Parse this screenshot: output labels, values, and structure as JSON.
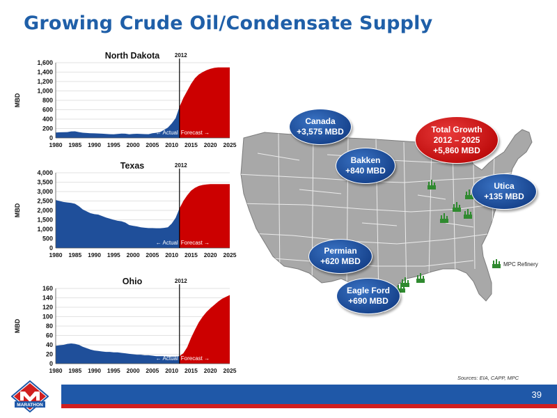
{
  "slide": {
    "title": "Growing Crude Oil/Condensate Supply",
    "page_number": "39",
    "sources": "Sources: EIA, CAPP, MPC",
    "logo_text": "MARATHON",
    "legend_refinery": "MPC Refinery"
  },
  "colors": {
    "actual": "#1f4f9a",
    "forecast": "#cc0000",
    "title": "#1f5fa8"
  },
  "bubbles": {
    "canada": {
      "l1": "Canada",
      "l2": "+3,575 MBD"
    },
    "bakken": {
      "l1": "Bakken",
      "l2": "+840 MBD"
    },
    "total": {
      "l1": "Total Growth",
      "l2": "2012 – 2025",
      "l3": "+5,860 MBD"
    },
    "utica": {
      "l1": "Utica",
      "l2": "+135 MBD"
    },
    "permian": {
      "l1": "Permian",
      "l2": "+620 MBD"
    },
    "eagle": {
      "l1": "Eagle Ford",
      "l2": "+690 MBD"
    }
  },
  "chart_data": [
    {
      "type": "area",
      "title": "North Dakota",
      "ylabel": "MBD",
      "split_label": "2012",
      "actual_label": "← Actual",
      "forecast_label": "Forecast →",
      "x": [
        1980,
        1981,
        1982,
        1983,
        1984,
        1985,
        1986,
        1987,
        1988,
        1989,
        1990,
        1991,
        1992,
        1993,
        1994,
        1995,
        1996,
        1997,
        1998,
        1999,
        2000,
        2001,
        2002,
        2003,
        2004,
        2005,
        2006,
        2007,
        2008,
        2009,
        2010,
        2011,
        2012,
        2013,
        2014,
        2015,
        2016,
        2017,
        2018,
        2019,
        2020,
        2021,
        2022,
        2023,
        2024,
        2025
      ],
      "y": [
        115,
        120,
        122,
        125,
        138,
        140,
        125,
        112,
        105,
        100,
        98,
        95,
        90,
        85,
        80,
        78,
        85,
        92,
        90,
        78,
        85,
        88,
        85,
        82,
        80,
        100,
        110,
        125,
        170,
        220,
        310,
        420,
        660,
        850,
        1000,
        1150,
        1270,
        1350,
        1400,
        1440,
        1470,
        1490,
        1500,
        1500,
        1500,
        1500
      ],
      "split_year": 2012,
      "ylim": [
        0,
        1600
      ],
      "yticks": [
        "0",
        "200",
        "400",
        "600",
        "800",
        "1,000",
        "1,200",
        "1,400",
        "1,600"
      ],
      "xticks": [
        "1980",
        "1985",
        "1990",
        "1995",
        "2000",
        "2005",
        "2010",
        "2015",
        "2020",
        "2025"
      ]
    },
    {
      "type": "area",
      "title": "Texas",
      "ylabel": "MBD",
      "split_label": "2012",
      "actual_label": "← Actual",
      "forecast_label": "Forecast →",
      "x": [
        1980,
        1981,
        1982,
        1983,
        1984,
        1985,
        1986,
        1987,
        1988,
        1989,
        1990,
        1991,
        1992,
        1993,
        1994,
        1995,
        1996,
        1997,
        1998,
        1999,
        2000,
        2001,
        2002,
        2003,
        2004,
        2005,
        2006,
        2007,
        2008,
        2009,
        2010,
        2011,
        2012,
        2013,
        2014,
        2015,
        2016,
        2017,
        2018,
        2019,
        2020,
        2021,
        2022,
        2023,
        2024,
        2025
      ],
      "y": [
        2550,
        2500,
        2450,
        2420,
        2400,
        2350,
        2220,
        2050,
        1950,
        1850,
        1800,
        1780,
        1700,
        1620,
        1560,
        1500,
        1450,
        1420,
        1350,
        1220,
        1180,
        1150,
        1100,
        1080,
        1060,
        1060,
        1050,
        1050,
        1070,
        1100,
        1300,
        1600,
        2100,
        2500,
        2800,
        3050,
        3200,
        3300,
        3350,
        3380,
        3400,
        3400,
        3400,
        3400,
        3400,
        3400
      ],
      "split_year": 2012,
      "ylim": [
        0,
        4000
      ],
      "yticks": [
        "0",
        "500",
        "1,000",
        "1,500",
        "2,000",
        "2,500",
        "3,000",
        "3,500",
        "4,000"
      ],
      "xticks": [
        "1980",
        "1985",
        "1990",
        "1995",
        "2000",
        "2005",
        "2010",
        "2015",
        "2020",
        "2025"
      ]
    },
    {
      "type": "area",
      "title": "Ohio",
      "ylabel": "MBD",
      "split_label": "2012",
      "actual_label": "← Actual",
      "forecast_label": "Forecast →",
      "x": [
        1980,
        1981,
        1982,
        1983,
        1984,
        1985,
        1986,
        1987,
        1988,
        1989,
        1990,
        1991,
        1992,
        1993,
        1994,
        1995,
        1996,
        1997,
        1998,
        1999,
        2000,
        2001,
        2002,
        2003,
        2004,
        2005,
        2006,
        2007,
        2008,
        2009,
        2010,
        2011,
        2012,
        2013,
        2014,
        2015,
        2016,
        2017,
        2018,
        2019,
        2020,
        2021,
        2022,
        2023,
        2024,
        2025
      ],
      "y": [
        38,
        39,
        40,
        42,
        43,
        42,
        40,
        36,
        33,
        30,
        28,
        27,
        26,
        25,
        25,
        24,
        24,
        23,
        22,
        21,
        20,
        19,
        19,
        18,
        18,
        17,
        16,
        16,
        16,
        15,
        15,
        15,
        16,
        22,
        35,
        55,
        72,
        88,
        100,
        110,
        118,
        125,
        132,
        138,
        142,
        146
      ],
      "split_year": 2012,
      "ylim": [
        0,
        160
      ],
      "yticks": [
        "0",
        "20",
        "40",
        "60",
        "80",
        "100",
        "120",
        "140",
        "160"
      ],
      "xticks": [
        "1980",
        "1985",
        "1990",
        "1995",
        "2000",
        "2005",
        "2010",
        "2015",
        "2020",
        "2025"
      ]
    }
  ]
}
